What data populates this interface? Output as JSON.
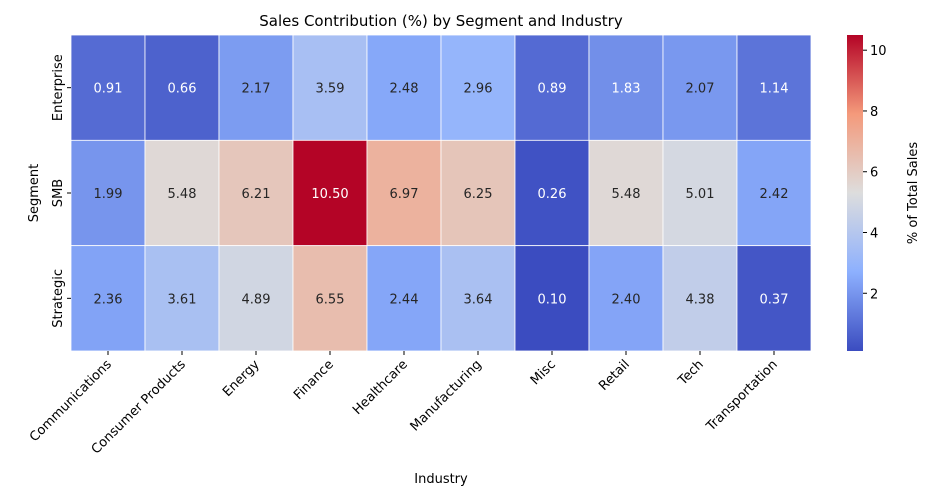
{
  "chart_data": {
    "type": "heatmap",
    "title": "Sales Contribution (%) by Segment and Industry",
    "xlabel": "Industry",
    "ylabel": "Segment",
    "x_categories": [
      "Communications",
      "Consumer Products",
      "Energy",
      "Finance",
      "Healthcare",
      "Manufacturing",
      "Misc",
      "Retail",
      "Tech",
      "Transportation"
    ],
    "y_categories": [
      "Enterprise",
      "SMB",
      "Strategic"
    ],
    "values": [
      [
        0.91,
        0.66,
        2.17,
        3.59,
        2.48,
        2.96,
        0.89,
        1.83,
        2.07,
        1.14
      ],
      [
        1.99,
        5.48,
        6.21,
        10.5,
        6.97,
        6.25,
        0.26,
        5.48,
        5.01,
        2.42
      ],
      [
        2.36,
        3.61,
        4.89,
        6.55,
        2.44,
        3.64,
        0.1,
        2.4,
        4.38,
        0.37
      ]
    ],
    "colormap": "coolwarm",
    "vmin": 0.1,
    "vmax": 10.5,
    "colorbar": {
      "label": "% of Total Sales",
      "ticks": [
        2,
        4,
        6,
        8,
        10
      ]
    },
    "annotation_format": "2 decimals"
  }
}
